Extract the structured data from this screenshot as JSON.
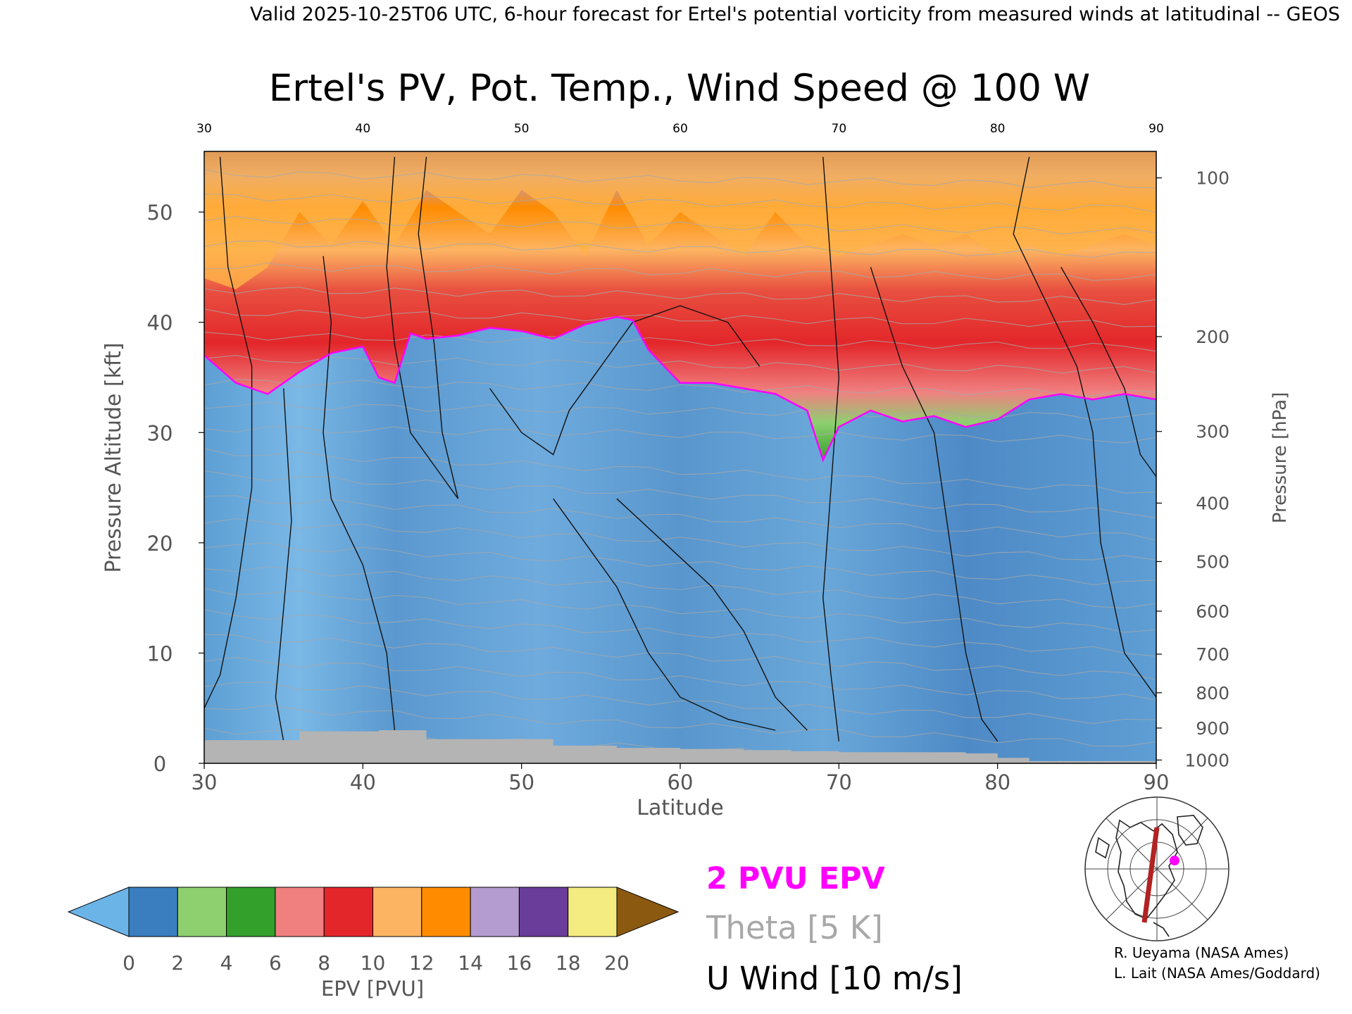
{
  "header": "Valid 2025-10-25T06 UTC, 6-hour forecast for Ertel's potential vorticity from measured winds at latitudinal -- GEOS",
  "chart_data": {
    "type": "heatmap",
    "title": "Ertel's PV, Pot. Temp., Wind Speed @ 100 W",
    "xlabel": "Latitude",
    "ylabel_left": "Pressure Altitude [kft]",
    "ylabel_right": "Pressure [hPa]",
    "x_range": [
      30,
      90
    ],
    "y_range": [
      0,
      55.5
    ],
    "x_ticks": [
      30,
      40,
      50,
      60,
      70,
      80,
      90
    ],
    "y_ticks": [
      0,
      10,
      20,
      30,
      40,
      50
    ],
    "pressure_ticks": [
      {
        "label": "100",
        "kft": 53.1
      },
      {
        "label": "200",
        "kft": 38.7
      },
      {
        "label": "300",
        "kft": 30.1
      },
      {
        "label": "400",
        "kft": 23.6
      },
      {
        "label": "500",
        "kft": 18.3
      },
      {
        "label": "600",
        "kft": 13.8
      },
      {
        "label": "700",
        "kft": 9.9
      },
      {
        "label": "800",
        "kft": 6.4
      },
      {
        "label": "900",
        "kft": 3.2
      },
      {
        "label": "1000",
        "kft": 0.3
      }
    ],
    "tropopause_2pvu_kft": [
      [
        30,
        37.0
      ],
      [
        32,
        34.5
      ],
      [
        34,
        33.5
      ],
      [
        36,
        35.5
      ],
      [
        38,
        37.2
      ],
      [
        40,
        37.8
      ],
      [
        41,
        35.0
      ],
      [
        42,
        34.5
      ],
      [
        43,
        39.0
      ],
      [
        44,
        38.5
      ],
      [
        46,
        38.8
      ],
      [
        48,
        39.5
      ],
      [
        50,
        39.2
      ],
      [
        52,
        38.5
      ],
      [
        54,
        39.8
      ],
      [
        56,
        40.5
      ],
      [
        57,
        40.2
      ],
      [
        58,
        37.5
      ],
      [
        60,
        34.5
      ],
      [
        62,
        34.5
      ],
      [
        64,
        34.0
      ],
      [
        66,
        33.5
      ],
      [
        68,
        32.0
      ],
      [
        69,
        27.5
      ],
      [
        70,
        30.5
      ],
      [
        72,
        32.0
      ],
      [
        74,
        31.0
      ],
      [
        76,
        31.5
      ],
      [
        78,
        30.5
      ],
      [
        80,
        31.2
      ],
      [
        82,
        33.0
      ],
      [
        84,
        33.5
      ],
      [
        86,
        33.0
      ],
      [
        88,
        33.5
      ],
      [
        90,
        33.0
      ]
    ],
    "epv_top_kft": [
      [
        30,
        44
      ],
      [
        32,
        43
      ],
      [
        34,
        45
      ],
      [
        36,
        50
      ],
      [
        38,
        47
      ],
      [
        40,
        51
      ],
      [
        42,
        47
      ],
      [
        44,
        52
      ],
      [
        46,
        50
      ],
      [
        48,
        48
      ],
      [
        50,
        52
      ],
      [
        52,
        50
      ],
      [
        54,
        46
      ],
      [
        56,
        52
      ],
      [
        58,
        47
      ],
      [
        60,
        50
      ],
      [
        62,
        48
      ],
      [
        64,
        46
      ],
      [
        66,
        50
      ],
      [
        68,
        47
      ],
      [
        70,
        46
      ],
      [
        72,
        47
      ],
      [
        74,
        48
      ],
      [
        76,
        47
      ],
      [
        78,
        48
      ],
      [
        80,
        46
      ],
      [
        82,
        47
      ],
      [
        84,
        46
      ],
      [
        86,
        47
      ],
      [
        88,
        48
      ],
      [
        90,
        47
      ]
    ],
    "u_wind_jet_kft": [
      [
        30,
        44
      ],
      [
        32,
        33
      ],
      [
        33,
        25
      ],
      [
        32,
        15
      ],
      [
        30,
        20
      ]
    ],
    "colorbar": {
      "label": "EPV [PVU]",
      "ticks": [
        "0",
        "2",
        "4",
        "6",
        "8",
        "10",
        "12",
        "14",
        "16",
        "18",
        "20"
      ],
      "colors": [
        "#6bb4e8",
        "#3a7ec0",
        "#8ed070",
        "#33a02c",
        "#f08080",
        "#e3262a",
        "#fdb462",
        "#ff8c00",
        "#b49bd0",
        "#6a3d9a",
        "#f4ec80",
        "#8b5a10"
      ]
    },
    "legend": [
      {
        "label": "2 PVU EPV",
        "color": "#ff00ff"
      },
      {
        "label": "Theta [5 K]",
        "color": "#a8a8a8"
      },
      {
        "label": "U Wind [10 m/s]",
        "color": "#000000"
      }
    ],
    "credits": [
      "R. Ueyama (NASA Ames)",
      "L. Lait (NASA Ames/Goddard)"
    ]
  }
}
